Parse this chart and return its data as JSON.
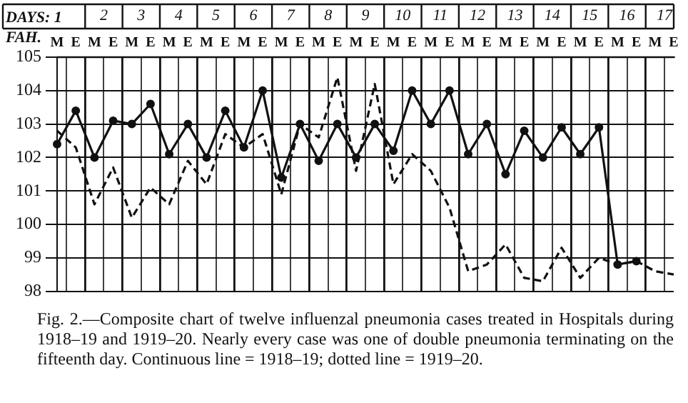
{
  "chart_data": {
    "type": "line",
    "title": "Fig. 2.—Composite chart of twelve influenzal pneumonia cases treated in Hospitals during 1918–19 and 1919–20. Nearly every case was one of double pneumonia terminating on the fifteenth day. Continuous line = 1918–19; dotted line = 1919–20.",
    "xlabel": "DAYS: 1",
    "ylabel": "FAH.",
    "annotations": [
      "2",
      "3",
      "4",
      "5",
      "6",
      "7",
      "8",
      "9",
      "10",
      "11",
      "12",
      "13",
      "14",
      "15",
      "16",
      "17"
    ],
    "categories": [
      "M",
      "E",
      "M",
      "E",
      "M",
      "E",
      "M",
      "E",
      "M",
      "E",
      "M",
      "E",
      "M",
      "E",
      "M",
      "E",
      "M",
      "E",
      "M",
      "E",
      "M",
      "E",
      "M",
      "E",
      "M",
      "E",
      "M",
      "E",
      "M",
      "E",
      "M",
      "E",
      "M",
      "E"
    ],
    "series": [
      {
        "color": "#111111",
        "marker": "circle",
        "line_style": "solid",
        "values": [
          102.4,
          103.4,
          102.0,
          103.1,
          103.0,
          103.6,
          102.1,
          103.0,
          102.0,
          103.4,
          102.3,
          104.0,
          101.4,
          103.0,
          101.9,
          103.0,
          102.0,
          103.0,
          102.2,
          104.0,
          103.0,
          104.0,
          102.1,
          103.0,
          101.5,
          102.8,
          102.0,
          102.9,
          102.1,
          102.9,
          98.8,
          98.9,
          null,
          null
        ]
      },
      {
        "color": "#111111",
        "marker": "none",
        "line_style": "dashed",
        "values": [
          102.8,
          102.3,
          100.6,
          101.7,
          100.2,
          101.1,
          100.6,
          101.9,
          101.2,
          102.7,
          102.3,
          102.7,
          100.9,
          103.0,
          102.6,
          104.4,
          101.6,
          104.2,
          101.2,
          102.1,
          101.6,
          100.5,
          98.6,
          98.8,
          99.4,
          98.4,
          98.3,
          99.3,
          98.4,
          99.0,
          98.8,
          98.9,
          98.6,
          98.5
        ]
      }
    ],
    "ylim": [
      98,
      105
    ],
    "yticks": [
      98,
      99,
      100,
      101,
      102,
      103,
      104,
      105
    ],
    "grid": true,
    "legend": false
  }
}
